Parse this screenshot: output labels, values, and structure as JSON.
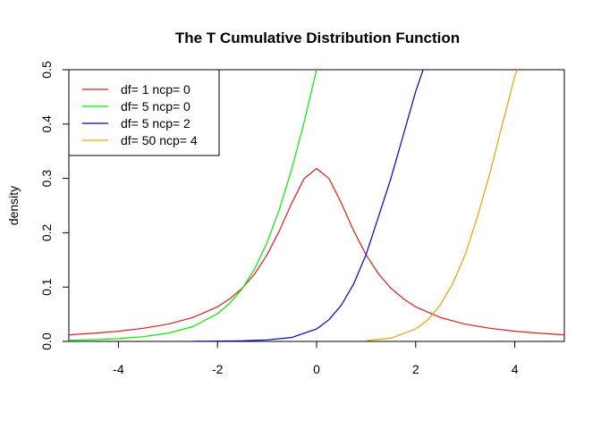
{
  "chart_data": {
    "type": "line",
    "title": "The T Cumulative Distribution Function",
    "xlabel": "",
    "ylabel": "density",
    "xlim": [
      -5,
      5
    ],
    "ylim": [
      0,
      0.5
    ],
    "x_ticks": [
      -4,
      -2,
      0,
      2,
      4
    ],
    "x_tick_labels": [
      "-4",
      "-2",
      "0",
      "2",
      "4"
    ],
    "y_ticks": [
      0.0,
      0.1,
      0.2,
      0.3,
      0.4,
      0.5
    ],
    "y_tick_labels": [
      "0.0",
      "0.1",
      "0.2",
      "0.3",
      "0.4",
      "0.5"
    ],
    "grid": false,
    "legend_position": "top-left",
    "series": [
      {
        "name": "df= 1  ncp= 0",
        "color": "#e41a1c",
        "x": [
          -5,
          -4.5,
          -4,
          -3.5,
          -3,
          -2.5,
          -2,
          -1.75,
          -1.5,
          -1.25,
          -1,
          -0.75,
          -0.5,
          -0.25,
          0,
          0.25,
          0.5,
          0.75,
          1,
          1.25,
          1.5,
          1.75,
          2,
          2.5,
          3,
          3.5,
          4,
          4.5,
          5
        ],
        "values": [
          0.0122,
          0.015,
          0.0187,
          0.0241,
          0.0318,
          0.0439,
          0.0637,
          0.0786,
          0.0979,
          0.1242,
          0.1592,
          0.2037,
          0.2546,
          0.2996,
          0.3183,
          0.2996,
          0.2546,
          0.2037,
          0.1592,
          0.1242,
          0.0979,
          0.0786,
          0.0637,
          0.0439,
          0.0318,
          0.0241,
          0.0187,
          0.015,
          0.0122
        ]
      },
      {
        "name": "df= 5  ncp= 0",
        "color": "#00ee00",
        "x": [
          -5,
          -4.5,
          -4,
          -3.5,
          -3,
          -2.5,
          -2,
          -1.75,
          -1.5,
          -1.25,
          -1,
          -0.75,
          -0.5,
          -0.25,
          0
        ],
        "values": [
          0.0021,
          0.0032,
          0.0051,
          0.0087,
          0.015,
          0.0272,
          0.051,
          0.0705,
          0.097,
          0.1335,
          0.1816,
          0.2429,
          0.3174,
          0.4036,
          0.5
        ]
      },
      {
        "name": "df= 5  ncp= 2",
        "color": "#0000cd",
        "x": [
          -2.5,
          -2,
          -1.5,
          -1,
          -0.5,
          0,
          0.25,
          0.5,
          0.75,
          1,
          1.25,
          1.5,
          1.75,
          2,
          2.15
        ],
        "values": [
          0.0002,
          0.0005,
          0.0011,
          0.0028,
          0.0072,
          0.0228,
          0.04,
          0.0667,
          0.106,
          0.16,
          0.23,
          0.3,
          0.38,
          0.46,
          0.5
        ]
      },
      {
        "name": "df= 50  ncp= 4",
        "color": "#f0a000",
        "x": [
          1,
          1.5,
          2,
          2.25,
          2.5,
          2.75,
          3,
          3.25,
          3.5,
          3.75,
          4,
          4.05
        ],
        "values": [
          0.0015,
          0.006,
          0.023,
          0.04,
          0.068,
          0.107,
          0.16,
          0.23,
          0.31,
          0.4,
          0.488,
          0.5
        ]
      }
    ]
  }
}
